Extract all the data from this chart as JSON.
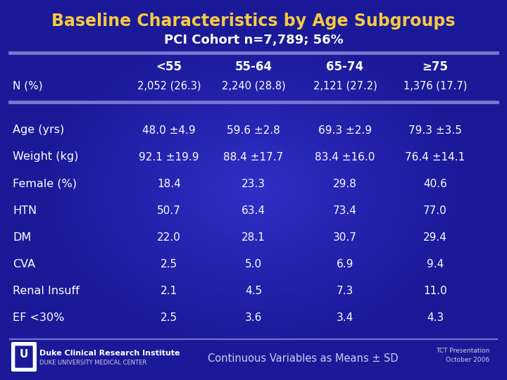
{
  "title1": "Baseline Characteristics by Age Subgroups",
  "title2": "PCI Cohort n=7,789; 56%",
  "bg_color": "#1a1a99",
  "title1_color": "#f5c842",
  "title2_color": "#ffffff",
  "header_color": "#ffffff",
  "row_label_color": "#ffffff",
  "cell_color": "#ffffff",
  "col_headers": [
    "<55",
    "55-64",
    "65-74",
    "≥75"
  ],
  "n_row_label": "N (%)",
  "n_row_values": [
    "2,052 (26.3)",
    "2,240 (28.8)",
    "2,121 (27.2)",
    "1,376 (17.7)"
  ],
  "rows": [
    {
      "label": "Age (yrs)",
      "values": [
        "48.0 ±4.9",
        "59.6 ±2.8",
        "69.3 ±2.9",
        "79.3 ±3.5"
      ]
    },
    {
      "label": "Weight (kg)",
      "values": [
        "92.1 ±19.9",
        "88.4 ±17.7",
        "83.4 ±16.0",
        "76.4 ±14.1"
      ]
    },
    {
      "label": "Female (%)",
      "values": [
        "18.4",
        "23.3",
        "29.8",
        "40.6"
      ]
    },
    {
      "label": "HTN",
      "values": [
        "50.7",
        "63.4",
        "73.4",
        "77.0"
      ]
    },
    {
      "label": "DM",
      "values": [
        "22.0",
        "28.1",
        "30.7",
        "29.4"
      ]
    },
    {
      "label": "CVA",
      "values": [
        "2.5",
        "5.0",
        "6.9",
        "9.4"
      ]
    },
    {
      "label": "Renal Insuff",
      "values": [
        "2.1",
        "4.5",
        "7.3",
        "11.0"
      ]
    },
    {
      "label": "EF <30%",
      "values": [
        "2.5",
        "3.6",
        "3.4",
        "4.3"
      ]
    }
  ],
  "footer_note": "Continuous Variables as Means ± SD",
  "footer_right": "TCT Presentation\nOctober 2006",
  "line_color": "#7777cc",
  "thick_line_color": "#5555bb"
}
